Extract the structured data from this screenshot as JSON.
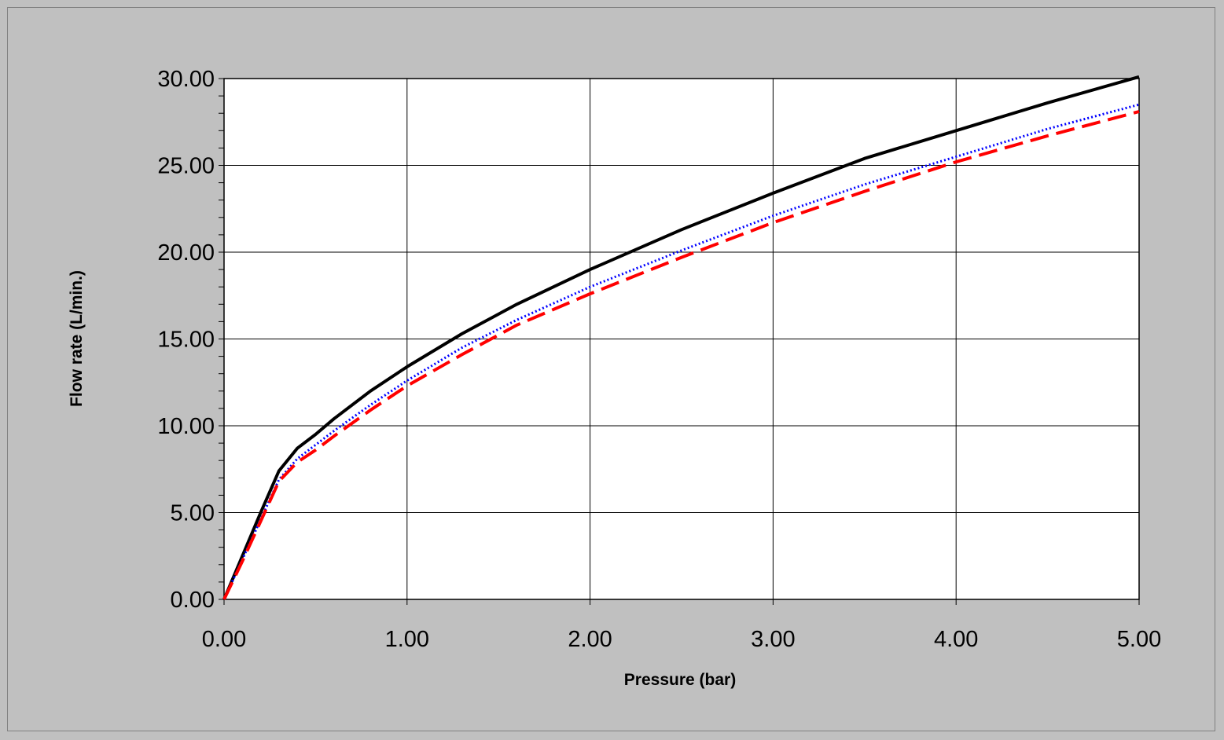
{
  "chart_data": {
    "type": "line",
    "xlabel": "Pressure (bar)",
    "ylabel": "Flow rate (L/min.)",
    "xlim": [
      0,
      5
    ],
    "ylim": [
      0,
      30
    ],
    "x_ticks": [
      "0.00",
      "1.00",
      "2.00",
      "3.00",
      "4.00",
      "5.00"
    ],
    "y_ticks": [
      "0.00",
      "5.00",
      "10.00",
      "15.00",
      "20.00",
      "25.00",
      "30.00"
    ],
    "grid": true,
    "legend": "none",
    "series": [
      {
        "color": "#000000",
        "style": "solid",
        "x": [
          0,
          0.1,
          0.2,
          0.3,
          0.4,
          0.5,
          0.6,
          0.8,
          1.0,
          1.3,
          1.6,
          2.0,
          2.5,
          3.0,
          3.5,
          4.0,
          4.5,
          5.0
        ],
        "y": [
          0,
          2.5,
          5.0,
          7.4,
          8.7,
          9.5,
          10.4,
          12.0,
          13.4,
          15.3,
          17.0,
          19.0,
          21.3,
          23.4,
          25.4,
          27.0,
          28.6,
          30.1
        ]
      },
      {
        "color": "#0000ff",
        "style": "dotted",
        "x": [
          0,
          0.1,
          0.2,
          0.3,
          0.4,
          0.5,
          0.6,
          0.8,
          1.0,
          1.3,
          1.6,
          2.0,
          2.5,
          3.0,
          3.5,
          4.0,
          4.5,
          5.0
        ],
        "y": [
          0,
          2.3,
          4.6,
          6.9,
          8.1,
          8.9,
          9.7,
          11.2,
          12.6,
          14.5,
          16.1,
          18.0,
          20.1,
          22.1,
          23.9,
          25.5,
          27.1,
          28.5
        ]
      },
      {
        "color": "#ff0000",
        "style": "dashed",
        "x": [
          0,
          0.1,
          0.2,
          0.3,
          0.4,
          0.5,
          0.6,
          0.8,
          1.0,
          1.3,
          1.6,
          2.0,
          2.5,
          3.0,
          3.5,
          4.0,
          4.5,
          5.0
        ],
        "y": [
          0,
          2.2,
          4.5,
          6.8,
          7.9,
          8.6,
          9.4,
          10.9,
          12.3,
          14.1,
          15.8,
          17.6,
          19.7,
          21.7,
          23.5,
          25.2,
          26.7,
          28.1
        ]
      }
    ]
  }
}
